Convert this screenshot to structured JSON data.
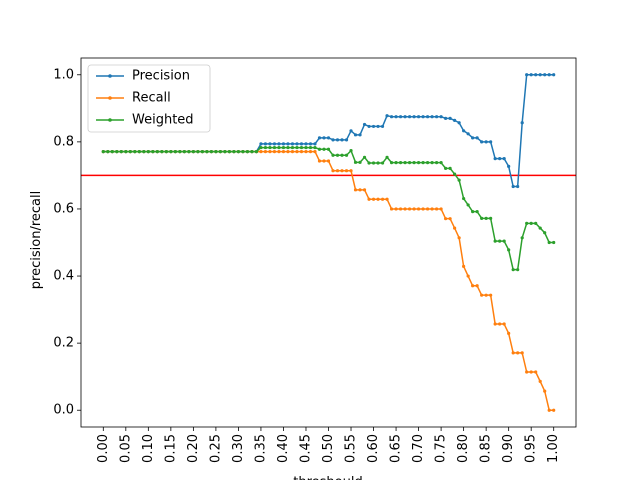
{
  "chart_data": {
    "type": "line",
    "xlabel": "threshould",
    "ylabel": "precision/recall",
    "xlim": [
      -0.0495,
      1.0495
    ],
    "ylim": [
      -0.05,
      1.05
    ],
    "xticks": [
      "0.00",
      "0.05",
      "0.10",
      "0.15",
      "0.20",
      "0.25",
      "0.30",
      "0.35",
      "0.40",
      "0.45",
      "0.50",
      "0.55",
      "0.60",
      "0.65",
      "0.70",
      "0.75",
      "0.80",
      "0.85",
      "0.90",
      "0.95",
      "1.00"
    ],
    "yticks": [
      "0.0",
      "0.2",
      "0.4",
      "0.6",
      "0.8",
      "1.0"
    ],
    "grid": false,
    "legend_position": "upper-left",
    "hline": {
      "y": 0.7,
      "color": "#ff0000"
    },
    "x": [
      0.0,
      0.01,
      0.02,
      0.03,
      0.04,
      0.05,
      0.06,
      0.07,
      0.08,
      0.09,
      0.1,
      0.11,
      0.12,
      0.13,
      0.14,
      0.15,
      0.16,
      0.17,
      0.18,
      0.19,
      0.2,
      0.21,
      0.22,
      0.23,
      0.24,
      0.25,
      0.26,
      0.27,
      0.28,
      0.29,
      0.3,
      0.31,
      0.32,
      0.33,
      0.34,
      0.35,
      0.36,
      0.37,
      0.38,
      0.39,
      0.4,
      0.41,
      0.42,
      0.43,
      0.44,
      0.45,
      0.46,
      0.47,
      0.48,
      0.49,
      0.5,
      0.51,
      0.52,
      0.53,
      0.54,
      0.55,
      0.56,
      0.57,
      0.58,
      0.59,
      0.6,
      0.61,
      0.62,
      0.63,
      0.64,
      0.65,
      0.66,
      0.67,
      0.68,
      0.69,
      0.7,
      0.71,
      0.72,
      0.73,
      0.74,
      0.75,
      0.76,
      0.77,
      0.78,
      0.79,
      0.8,
      0.81,
      0.82,
      0.83,
      0.84,
      0.85,
      0.86,
      0.87,
      0.88,
      0.89,
      0.9,
      0.91,
      0.92,
      0.93,
      0.94,
      0.95,
      0.96,
      0.97,
      0.98,
      0.99,
      1.0
    ],
    "series": [
      {
        "name": "Precision",
        "color": "#1f77b4",
        "values": [
          0.771,
          0.771,
          0.771,
          0.771,
          0.771,
          0.771,
          0.771,
          0.771,
          0.771,
          0.771,
          0.771,
          0.771,
          0.771,
          0.771,
          0.771,
          0.771,
          0.771,
          0.771,
          0.771,
          0.771,
          0.771,
          0.771,
          0.771,
          0.771,
          0.771,
          0.771,
          0.771,
          0.771,
          0.771,
          0.771,
          0.771,
          0.771,
          0.771,
          0.771,
          0.771,
          0.794,
          0.794,
          0.794,
          0.794,
          0.794,
          0.794,
          0.794,
          0.794,
          0.794,
          0.794,
          0.794,
          0.794,
          0.794,
          0.812,
          0.812,
          0.812,
          0.806,
          0.806,
          0.806,
          0.806,
          0.833,
          0.821,
          0.821,
          0.852,
          0.846,
          0.846,
          0.846,
          0.846,
          0.878,
          0.875,
          0.875,
          0.875,
          0.875,
          0.875,
          0.875,
          0.875,
          0.875,
          0.875,
          0.875,
          0.875,
          0.875,
          0.87,
          0.87,
          0.864,
          0.857,
          0.833,
          0.824,
          0.812,
          0.812,
          0.8,
          0.8,
          0.8,
          0.75,
          0.75,
          0.75,
          0.727,
          0.667,
          0.667,
          0.857,
          1.0,
          1.0,
          1.0,
          1.0,
          1.0,
          1.0,
          1.0
        ]
      },
      {
        "name": "Recall",
        "color": "#ff7f0e",
        "values": [
          0.771,
          0.771,
          0.771,
          0.771,
          0.771,
          0.771,
          0.771,
          0.771,
          0.771,
          0.771,
          0.771,
          0.771,
          0.771,
          0.771,
          0.771,
          0.771,
          0.771,
          0.771,
          0.771,
          0.771,
          0.771,
          0.771,
          0.771,
          0.771,
          0.771,
          0.771,
          0.771,
          0.771,
          0.771,
          0.771,
          0.771,
          0.771,
          0.771,
          0.771,
          0.771,
          0.771,
          0.771,
          0.771,
          0.771,
          0.771,
          0.771,
          0.771,
          0.771,
          0.771,
          0.771,
          0.771,
          0.771,
          0.771,
          0.743,
          0.743,
          0.743,
          0.714,
          0.714,
          0.714,
          0.714,
          0.714,
          0.657,
          0.657,
          0.657,
          0.629,
          0.629,
          0.629,
          0.629,
          0.629,
          0.6,
          0.6,
          0.6,
          0.6,
          0.6,
          0.6,
          0.6,
          0.6,
          0.6,
          0.6,
          0.6,
          0.6,
          0.571,
          0.571,
          0.543,
          0.514,
          0.429,
          0.4,
          0.371,
          0.371,
          0.343,
          0.343,
          0.343,
          0.257,
          0.257,
          0.257,
          0.229,
          0.171,
          0.171,
          0.171,
          0.114,
          0.114,
          0.114,
          0.086,
          0.057,
          0.0,
          0.0
        ]
      },
      {
        "name": "Weighted",
        "color": "#2ca02c",
        "values": [
          0.771,
          0.771,
          0.771,
          0.771,
          0.771,
          0.771,
          0.771,
          0.771,
          0.771,
          0.771,
          0.771,
          0.771,
          0.771,
          0.771,
          0.771,
          0.771,
          0.771,
          0.771,
          0.771,
          0.771,
          0.771,
          0.771,
          0.771,
          0.771,
          0.771,
          0.771,
          0.771,
          0.771,
          0.771,
          0.771,
          0.771,
          0.771,
          0.771,
          0.771,
          0.771,
          0.783,
          0.783,
          0.783,
          0.783,
          0.783,
          0.783,
          0.783,
          0.783,
          0.783,
          0.783,
          0.783,
          0.783,
          0.783,
          0.778,
          0.778,
          0.778,
          0.76,
          0.76,
          0.76,
          0.76,
          0.774,
          0.739,
          0.739,
          0.754,
          0.737,
          0.737,
          0.737,
          0.737,
          0.754,
          0.738,
          0.738,
          0.738,
          0.738,
          0.738,
          0.738,
          0.738,
          0.738,
          0.738,
          0.738,
          0.738,
          0.738,
          0.721,
          0.721,
          0.704,
          0.686,
          0.631,
          0.612,
          0.592,
          0.592,
          0.572,
          0.572,
          0.572,
          0.504,
          0.504,
          0.504,
          0.478,
          0.419,
          0.419,
          0.514,
          0.557,
          0.557,
          0.557,
          0.543,
          0.529,
          0.5,
          0.5
        ]
      }
    ]
  }
}
